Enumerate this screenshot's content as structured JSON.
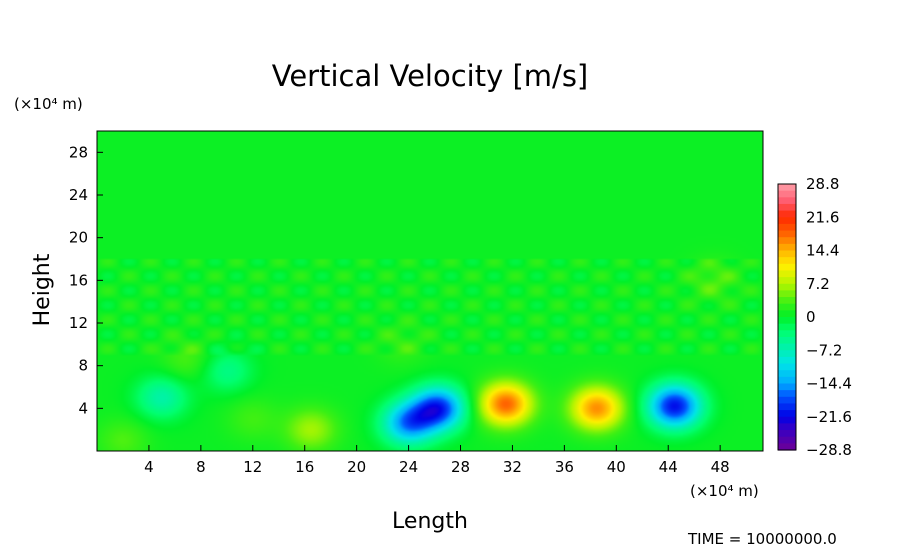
{
  "chart_data": {
    "type": "heatmap",
    "title": "Vertical Velocity [m/s]",
    "xlabel": "Length",
    "ylabel": "Height",
    "x_unit": "(×10⁴ m)",
    "y_unit": "(×10⁴ m)",
    "xlim": [
      0,
      51.3
    ],
    "ylim": [
      0,
      30
    ],
    "x_ticks": [
      4,
      8,
      12,
      16,
      20,
      24,
      28,
      32,
      36,
      40,
      44,
      48
    ],
    "y_ticks": [
      4,
      8,
      12,
      16,
      20,
      24,
      28
    ],
    "colorbar": {
      "range": [
        -28.8,
        28.8
      ],
      "tick_labels": [
        "28.8",
        "21.6",
        "14.4",
        "7.2",
        "0",
        "−7.2",
        "−14.4",
        "−21.6",
        "−28.8"
      ],
      "tick_values": [
        28.8,
        21.6,
        14.4,
        7.2,
        0,
        -7.2,
        -14.4,
        -21.6,
        -28.8
      ]
    },
    "features": [
      {
        "x": 24.0,
        "y": 2.6,
        "value": -16.0
      },
      {
        "x": 26.3,
        "y": 4.0,
        "value": -20.0
      },
      {
        "x": 31.5,
        "y": 4.4,
        "value": 17.5
      },
      {
        "x": 38.5,
        "y": 4.0,
        "value": 15.5
      },
      {
        "x": 44.5,
        "y": 4.2,
        "value": -21.5
      },
      {
        "x": 5.0,
        "y": 5.0,
        "value": -7.0
      },
      {
        "x": 10.0,
        "y": 7.5,
        "value": -5.0
      },
      {
        "x": 16.5,
        "y": 2.0,
        "value": 6.0
      },
      {
        "x": 7.0,
        "y": 8.5,
        "value": 3.0
      },
      {
        "x": 2.0,
        "y": 1.0,
        "value": 3.0
      },
      {
        "x": 12.0,
        "y": 3.0,
        "value": 2.5
      },
      {
        "x": 47.5,
        "y": 16.0,
        "value": 3.0
      },
      {
        "x": 23.5,
        "y": 10.0,
        "value": 2.0
      }
    ],
    "grid": false,
    "legend": "colorbar-right"
  },
  "footer": {
    "time_label": "TIME = 10000000.0"
  }
}
